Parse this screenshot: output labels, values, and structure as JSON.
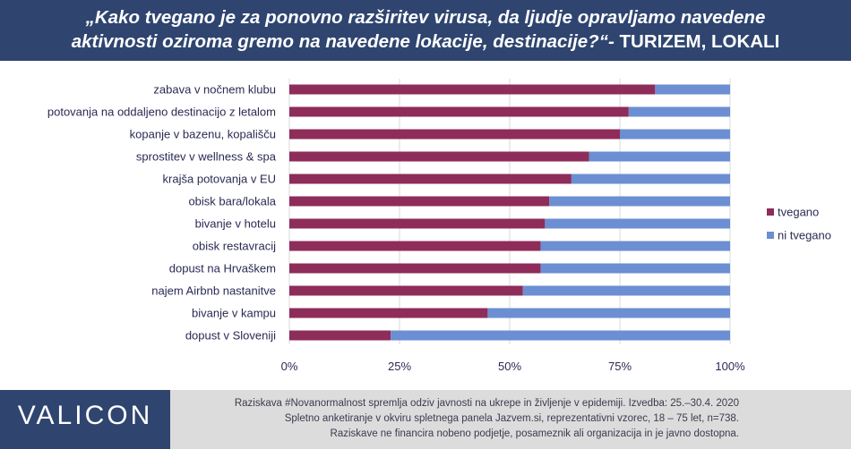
{
  "header": {
    "title_line1": "„Kako tvegano je za ponovno razširitev virusa, da ljudje opravljamo navedene",
    "title_line2_italic": "aktivnosti oziroma gremo na navedene lokacije, destinacije?“-",
    "title_line2_bold": " TURIZEM, LOKALI"
  },
  "chart_data": {
    "type": "bar",
    "orientation": "horizontal",
    "stacked": true,
    "normalized": true,
    "categories": [
      "zabava v nočnem klubu",
      "potovanja na oddaljeno destinacijo z letalom",
      "kopanje v bazenu, kopališču",
      "sprostitev v wellness & spa",
      "krajša potovanja v EU",
      "obisk bara/lokala",
      "bivanje v hotelu",
      "obisk restavracij",
      "dopust na Hrvaškem",
      "najem Airbnb nastanitve",
      "bivanje v kampu",
      "dopust v Sloveniji"
    ],
    "series": [
      {
        "name": "tvegano",
        "color": "#8e2c5a",
        "values": [
          83,
          77,
          75,
          68,
          64,
          59,
          58,
          57,
          57,
          53,
          45,
          23
        ]
      },
      {
        "name": "ni tvegano",
        "color": "#6c8ed2",
        "values": [
          17,
          23,
          25,
          32,
          36,
          41,
          42,
          43,
          43,
          47,
          55,
          77
        ]
      }
    ],
    "xlim": [
      0,
      100
    ],
    "x_ticks": [
      "0%",
      "25%",
      "50%",
      "75%",
      "100%"
    ],
    "x_tick_values": [
      0,
      25,
      50,
      75,
      100
    ],
    "legend_position": "right",
    "grid": true
  },
  "footer": {
    "logo": "VALICON",
    "note_line1": "Raziskava #Novanormalnost spremlja  odziv javnosti  na ukrepe in življenje v epidemiji.  Izvedba: 25.–30.4. 2020",
    "note_line2": "Spletno anketiranje v okviru spletnega panela Jazvem.si, reprezentativni vzorec, 18 – 75 let, n=738.",
    "note_line3": "Raziskave ne financira nobeno podjetje, posameznik ali organizacija in je javno dostopna."
  }
}
